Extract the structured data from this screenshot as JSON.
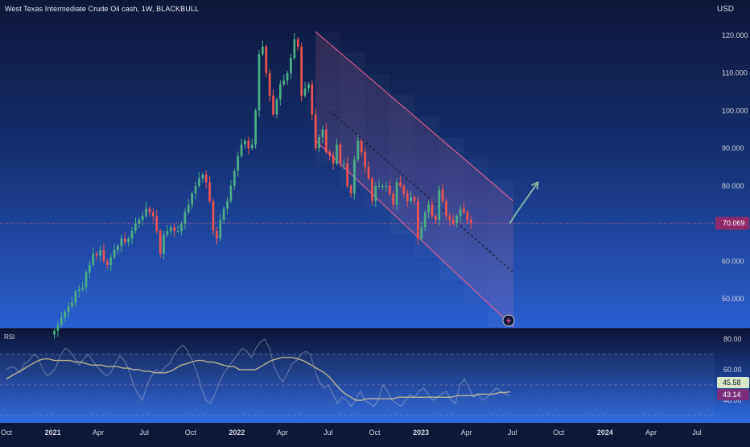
{
  "header": {
    "title": "West Texas Intermediate Crude Oil cash, 1W, BLACKBULL",
    "currency": "USD"
  },
  "rsi_panel": {
    "label": "RSI"
  },
  "colors": {
    "up": "#26a69a",
    "up_body": "#4caf86",
    "down": "#ef5350",
    "channel": "#f06292",
    "arrow": "#7fb3a6",
    "price_line": "#f06292",
    "rsi_line": "#c8ccd6",
    "rsi_ma": "#d4c896",
    "price_badge": "#8e2a6a",
    "rsi_badge_1": "#d6e8c8",
    "rsi_badge_2": "#7b2f7a"
  },
  "chart_data": [
    {
      "type": "candlestick",
      "title": "West Texas Intermediate Crude Oil cash, 1W, BLACKBULL",
      "ylabel": "USD",
      "ylim": [
        42,
        127
      ],
      "y_ticks": [
        "120.000",
        "110.000",
        "100.000",
        "90.000",
        "80.000",
        "60.000",
        "50.000"
      ],
      "y_tick_values": [
        120,
        110,
        100,
        90,
        80,
        60,
        50
      ],
      "x_ticks": [
        {
          "label": "Oct",
          "date": "2020-10-01"
        },
        {
          "label": "2021",
          "date": "2021-01-01",
          "bold": true
        },
        {
          "label": "Apr",
          "date": "2021-04-01"
        },
        {
          "label": "Jul",
          "date": "2021-07-01"
        },
        {
          "label": "Oct",
          "date": "2021-10-01"
        },
        {
          "label": "2022",
          "date": "2022-01-01",
          "bold": true
        },
        {
          "label": "Apr",
          "date": "2022-04-01"
        },
        {
          "label": "Jul",
          "date": "2022-07-01"
        },
        {
          "label": "Oct",
          "date": "2022-10-01"
        },
        {
          "label": "2023",
          "date": "2023-01-01",
          "bold": true
        },
        {
          "label": "Apr",
          "date": "2023-04-01"
        },
        {
          "label": "Jul",
          "date": "2023-07-01"
        },
        {
          "label": "Oct",
          "date": "2023-10-01"
        },
        {
          "label": "2024",
          "date": "2024-01-01",
          "bold": true
        },
        {
          "label": "Apr",
          "date": "2024-04-01"
        },
        {
          "label": "Jul",
          "date": "2024-07-01"
        }
      ],
      "current_price": 70.069,
      "current_price_label": "70.069",
      "closes": [
        41.5,
        43,
        45,
        46.5,
        48,
        49,
        52,
        52.5,
        53,
        57,
        59,
        62,
        61.5,
        63,
        60,
        59,
        61,
        63,
        64,
        66,
        65,
        66,
        68,
        70,
        71,
        72,
        74,
        73,
        72,
        68,
        62,
        67,
        68,
        69,
        68,
        68,
        70,
        73,
        75,
        78,
        80,
        82,
        83,
        81,
        76,
        68,
        66,
        71,
        74,
        76,
        80,
        84,
        88,
        91,
        92,
        90,
        91,
        100,
        115,
        117,
        110,
        104,
        99,
        103,
        107,
        108,
        110,
        114,
        119,
        117,
        104,
        106,
        107,
        99,
        90,
        93,
        95,
        89,
        88,
        86,
        91,
        86,
        86,
        80,
        78,
        87,
        92,
        89,
        85,
        82,
        76,
        80,
        80,
        80,
        80,
        78,
        75,
        81,
        80,
        78,
        76,
        77,
        76,
        66,
        69,
        73,
        75,
        72,
        71,
        79,
        76,
        72,
        71,
        70,
        72,
        74,
        73,
        71,
        70.069
      ],
      "trendlines": [
        {
          "name": "channel-upper",
          "from": [
            "2022-06-06",
            121
          ],
          "to": [
            "2023-07-03",
            76
          ]
        },
        {
          "name": "channel-lower",
          "from": [
            "2022-06-06",
            92
          ],
          "to": [
            "2023-07-03",
            42.5
          ]
        },
        {
          "name": "channel-mid",
          "from": [
            "2022-07-04",
            100
          ],
          "to": [
            "2023-07-03",
            57
          ]
        }
      ],
      "projection_arrow": [
        [
          "2023-06-26",
          70
        ],
        [
          "2023-07-10",
          73
        ],
        [
          "2023-08-21",
          81
        ]
      ]
    },
    {
      "type": "line",
      "title": "RSI",
      "ylim": [
        25,
        90
      ],
      "y_ticks": [
        "80.00",
        "60.00",
        "40.00"
      ],
      "y_tick_values": [
        80,
        60,
        40
      ],
      "series": [
        {
          "values": [
            60,
            62,
            61,
            58,
            64,
            66,
            70,
            68,
            60,
            56,
            58,
            62,
            70,
            74,
            72,
            68,
            63,
            67,
            70,
            66,
            62,
            59,
            56,
            58,
            64,
            69,
            66,
            60,
            50,
            44,
            40,
            50,
            56,
            60,
            58,
            62,
            64,
            70,
            74,
            76,
            72,
            66,
            58,
            48,
            40,
            38,
            44,
            52,
            58,
            62,
            66,
            70,
            74,
            72,
            68,
            74,
            78,
            80,
            74,
            62,
            56,
            52,
            58,
            64,
            66,
            70,
            72,
            70,
            60,
            52,
            48,
            50,
            44,
            38,
            42,
            40,
            36,
            40,
            46,
            40,
            38,
            36,
            40,
            50,
            46,
            40,
            38,
            36,
            40,
            44,
            42,
            46,
            48,
            44,
            40,
            42,
            44,
            46,
            40,
            38,
            50,
            54,
            48,
            42,
            44,
            40,
            42,
            45,
            48,
            46,
            44,
            43.14
          ]
        },
        {
          "values": [
            54,
            56,
            58,
            60,
            62,
            64,
            66,
            67,
            67,
            66,
            66,
            66,
            66,
            65,
            65,
            64,
            63,
            63,
            63,
            62,
            62,
            62,
            61,
            61,
            60,
            60,
            59,
            59,
            58,
            58,
            58,
            59,
            61,
            63,
            64,
            65,
            66,
            66,
            65,
            65,
            64,
            63,
            62,
            62,
            60,
            60,
            60,
            60,
            62,
            64,
            66,
            67,
            68,
            68,
            68,
            67,
            66,
            64,
            62,
            60,
            58,
            55,
            51,
            47,
            44,
            42,
            40,
            40,
            41,
            41,
            41,
            41,
            41,
            41,
            42,
            42,
            42,
            42,
            42,
            42,
            42,
            42,
            42,
            42,
            42,
            43,
            43,
            43,
            43,
            44,
            44,
            44,
            44,
            45,
            45,
            45.58
          ]
        }
      ],
      "current_values": [
        "45.58",
        "43.14"
      ]
    }
  ]
}
